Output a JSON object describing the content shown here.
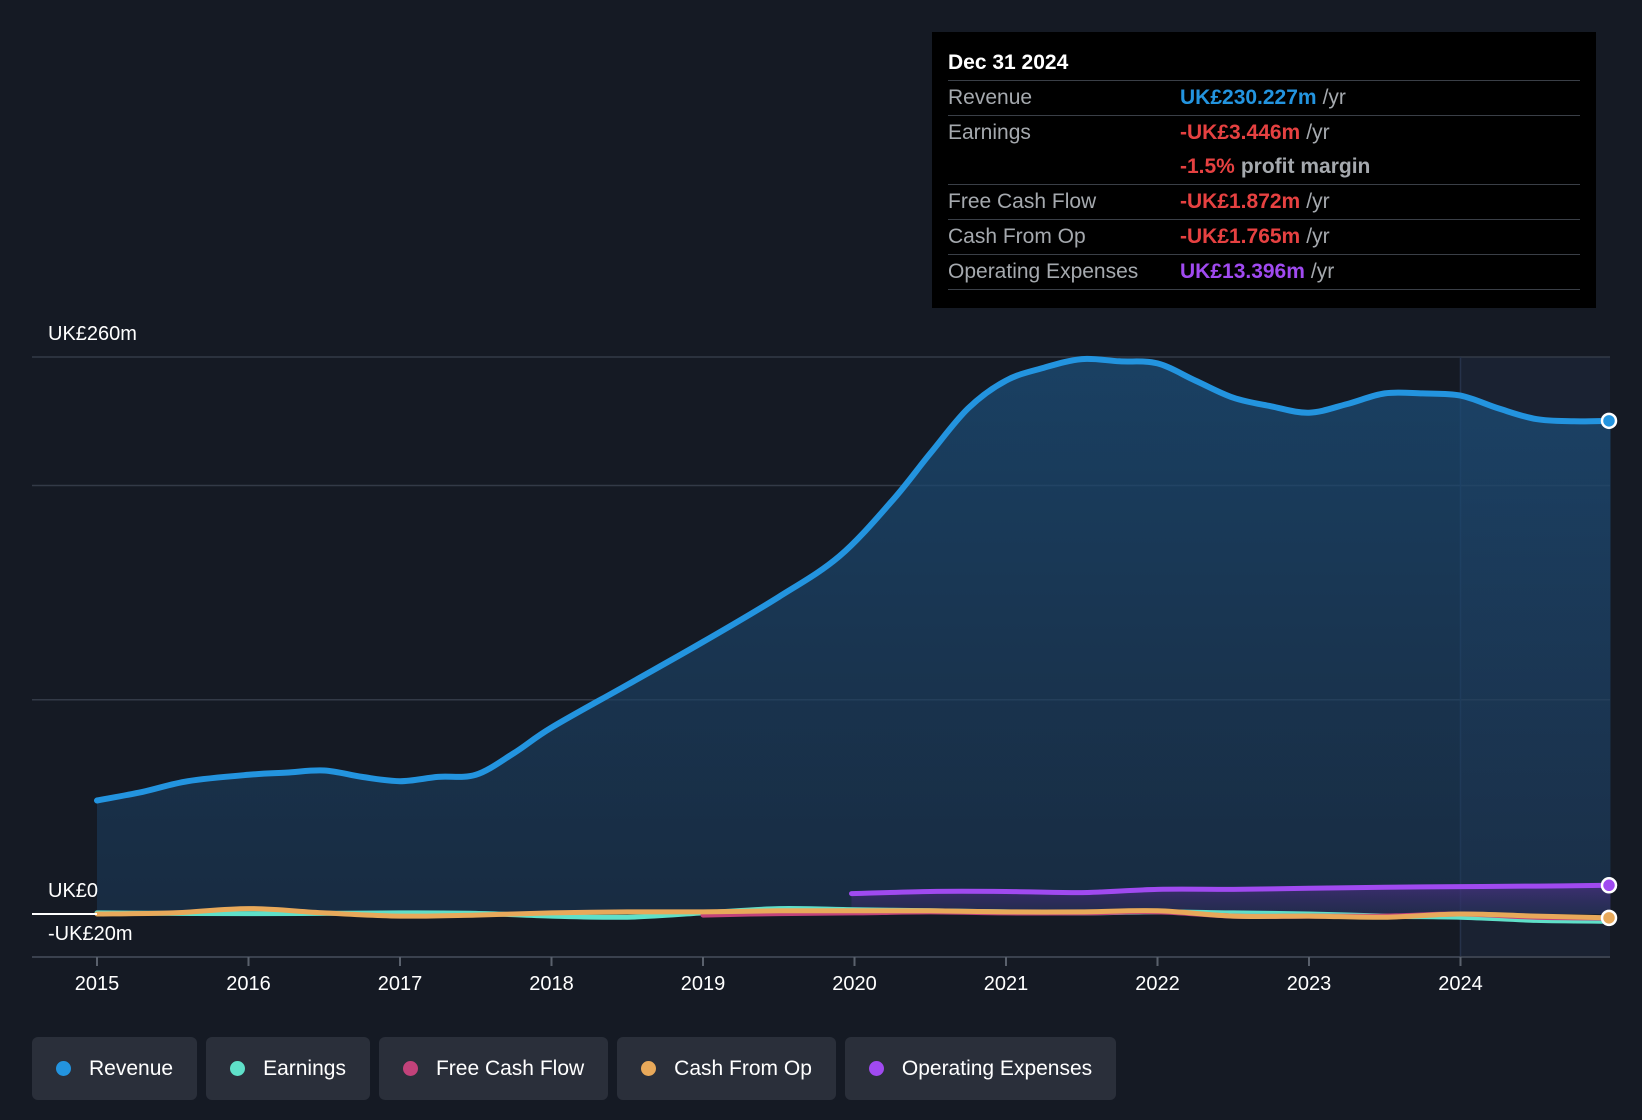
{
  "tooltip": {
    "date": "Dec 31 2024",
    "rows": [
      {
        "label": "Revenue",
        "value": "UK£230.227m",
        "unit": "/yr",
        "color": "#2394df"
      },
      {
        "label": "Earnings",
        "value": "-UK£3.446m",
        "unit": "/yr",
        "color": "#e64141",
        "sub_value": "-1.5%",
        "sub_unit": "profit margin"
      },
      {
        "label": "Free Cash Flow",
        "value": "-UK£1.872m",
        "unit": "/yr",
        "color": "#e64141"
      },
      {
        "label": "Cash From Op",
        "value": "-UK£1.765m",
        "unit": "/yr",
        "color": "#e64141"
      },
      {
        "label": "Operating Expenses",
        "value": "UK£13.396m",
        "unit": "/yr",
        "color": "#a04af0"
      }
    ]
  },
  "legend": [
    {
      "label": "Revenue",
      "color": "#2394df"
    },
    {
      "label": "Earnings",
      "color": "#5fe0c9"
    },
    {
      "label": "Free Cash Flow",
      "color": "#c2427a"
    },
    {
      "label": "Cash From Op",
      "color": "#e8a95a"
    },
    {
      "label": "Operating Expenses",
      "color": "#a04af0"
    }
  ],
  "chart_data": {
    "type": "area",
    "y_axis_labels": {
      "top": "UK£260m",
      "zero": "UK£0",
      "bottom": "-UK£20m"
    },
    "ylim": [
      -20,
      260
    ],
    "xlim": [
      2015,
      2025
    ],
    "x_ticks": [
      "2015",
      "2016",
      "2017",
      "2018",
      "2019",
      "2020",
      "2021",
      "2022",
      "2023",
      "2024"
    ],
    "forecast_start": 2024.0,
    "grid": true,
    "series": [
      {
        "name": "Revenue",
        "color": "#2394df",
        "fill": true,
        "x": [
          2015.0,
          2015.3,
          2015.6,
          2016.0,
          2016.25,
          2016.5,
          2016.75,
          2017.0,
          2017.25,
          2017.5,
          2017.75,
          2018.0,
          2018.5,
          2019.0,
          2019.5,
          2019.9,
          2020.25,
          2020.5,
          2020.75,
          2021.0,
          2021.25,
          2021.5,
          2021.75,
          2022.0,
          2022.25,
          2022.5,
          2022.75,
          2023.0,
          2023.25,
          2023.5,
          2023.75,
          2024.0,
          2024.25,
          2024.5,
          2024.75,
          2024.99
        ],
        "y": [
          53,
          57,
          62,
          65,
          66,
          67,
          64,
          62,
          64,
          65,
          75,
          87,
          107,
          127,
          148,
          167,
          193,
          215,
          236,
          249,
          255,
          259,
          258,
          257,
          249,
          241,
          237,
          234,
          238,
          243,
          243,
          242,
          236,
          231,
          230,
          230.2
        ]
      },
      {
        "name": "Earnings",
        "color": "#5fe0c9",
        "fill": false,
        "x": [
          2015.0,
          2016.0,
          2017.0,
          2017.5,
          2018.0,
          2018.5,
          2019.0,
          2019.5,
          2020.0,
          2020.5,
          2021.0,
          2021.5,
          2022.0,
          2022.5,
          2023.0,
          2023.5,
          2024.0,
          2024.5,
          2024.99
        ],
        "y": [
          0.5,
          0.2,
          0.5,
          0.3,
          -1.0,
          -1.5,
          0.5,
          2.5,
          2.0,
          1.5,
          1.0,
          0.5,
          1.0,
          0.5,
          0.0,
          -1.0,
          -1.5,
          -3.0,
          -3.4
        ]
      },
      {
        "name": "Free Cash Flow",
        "color": "#c2427a",
        "fill": false,
        "x": [
          2019.0,
          2019.5,
          2020.0,
          2020.5,
          2021.0,
          2021.5,
          2022.0,
          2022.5,
          2023.0,
          2023.5,
          2024.0,
          2024.5,
          2024.99
        ],
        "y": [
          -0.5,
          0.2,
          0.5,
          1.0,
          0.5,
          0.5,
          1.0,
          -1.0,
          -1.0,
          -1.0,
          0.0,
          -1.5,
          -1.9
        ]
      },
      {
        "name": "Cash From Op",
        "color": "#e8a95a",
        "fill": false,
        "x": [
          2015.0,
          2015.5,
          2016.0,
          2016.5,
          2017.0,
          2017.5,
          2018.0,
          2018.5,
          2019.0,
          2019.5,
          2020.0,
          2020.5,
          2021.0,
          2021.5,
          2022.0,
          2022.5,
          2023.0,
          2023.5,
          2024.0,
          2024.5,
          2024.99
        ],
        "y": [
          0.0,
          0.5,
          2.5,
          0.5,
          -1.0,
          -0.5,
          0.5,
          1.0,
          1.0,
          1.5,
          1.5,
          1.5,
          1.0,
          1.0,
          1.5,
          -1.0,
          -1.0,
          -1.5,
          0.0,
          -1.0,
          -1.8
        ]
      },
      {
        "name": "Operating Expenses",
        "color": "#a04af0",
        "fill": true,
        "x": [
          2019.98,
          2020.5,
          2021.0,
          2021.5,
          2022.0,
          2022.5,
          2023.0,
          2023.5,
          2024.0,
          2024.5,
          2024.99
        ],
        "y": [
          9.5,
          10.5,
          10.5,
          10.0,
          11.5,
          11.5,
          12.0,
          12.5,
          12.8,
          13.0,
          13.4
        ]
      }
    ]
  }
}
